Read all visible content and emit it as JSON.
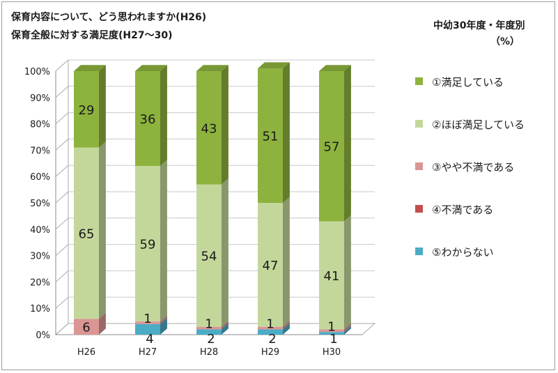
{
  "title_line1": "保育内容について、どう思われますか(H26)",
  "title_line2": "保育全般に対する満足度(H27～30)",
  "subtitle_line1": "中幼30年度・年度別",
  "subtitle_line2": "（%）",
  "chart_data": {
    "type": "bar",
    "stacked": true,
    "three_d": true,
    "categories": [
      "H26",
      "H27",
      "H28",
      "H29",
      "H30"
    ],
    "series": [
      {
        "name": "⑤わからない",
        "color": "#4bacc6",
        "values": [
          0,
          4,
          2,
          2,
          1
        ],
        "labels": [
          "",
          "4",
          "2",
          "2",
          "1"
        ]
      },
      {
        "name": "④不満である",
        "color": "#c0504d",
        "values": [
          0,
          0,
          0,
          0,
          0
        ],
        "labels": [
          "",
          "",
          "",
          "",
          ""
        ]
      },
      {
        "name": "③やや不満である",
        "color": "#da9694",
        "values": [
          6,
          1,
          1,
          1,
          1
        ],
        "labels": [
          "6",
          "1",
          "1",
          "1",
          "1"
        ]
      },
      {
        "name": "②ほぼ満足している",
        "color": "#c4d79b",
        "values": [
          65,
          59,
          54,
          47,
          41
        ],
        "labels": [
          "65",
          "59",
          "54",
          "47",
          "41"
        ]
      },
      {
        "name": "①満足している",
        "color": "#8db33e",
        "values": [
          29,
          36,
          43,
          51,
          57
        ],
        "labels": [
          "29",
          "36",
          "43",
          "51",
          "57"
        ]
      }
    ],
    "y_ticks": [
      "0%",
      "10%",
      "20%",
      "30%",
      "40%",
      "50%",
      "60%",
      "70%",
      "80%",
      "90%",
      "100%"
    ],
    "ylim": [
      0,
      100
    ],
    "legend_position": "right"
  }
}
